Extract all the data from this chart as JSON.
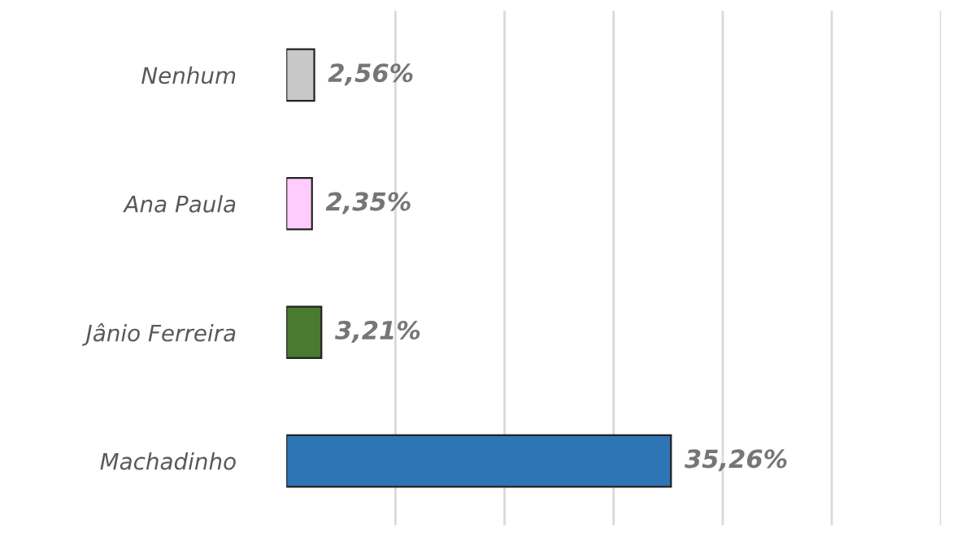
{
  "chart_data": {
    "type": "bar",
    "orientation": "horizontal",
    "categories": [
      "Nenhum",
      "Ana Paula",
      "Jânio Ferreira",
      "Machadinho"
    ],
    "values": [
      2.56,
      2.35,
      3.21,
      35.26
    ],
    "colors": [
      "#c8c8c8",
      "#ffccff",
      "#4a7a2e",
      "#2e75b6"
    ],
    "value_labels": [
      "2,56%",
      "2,35%",
      "3,21%",
      "35,26%"
    ],
    "xlim": [
      0,
      60
    ],
    "xticks": [
      {
        "value": 10,
        "label": null
      },
      {
        "value": 20,
        "label": null
      },
      {
        "value": 30,
        "label": null
      },
      {
        "value": 40,
        "label": null
      },
      {
        "value": 50,
        "label": null
      },
      {
        "value": 60,
        "label": null
      }
    ],
    "tick_labels": "y",
    "grid": "x",
    "legend": false
  }
}
